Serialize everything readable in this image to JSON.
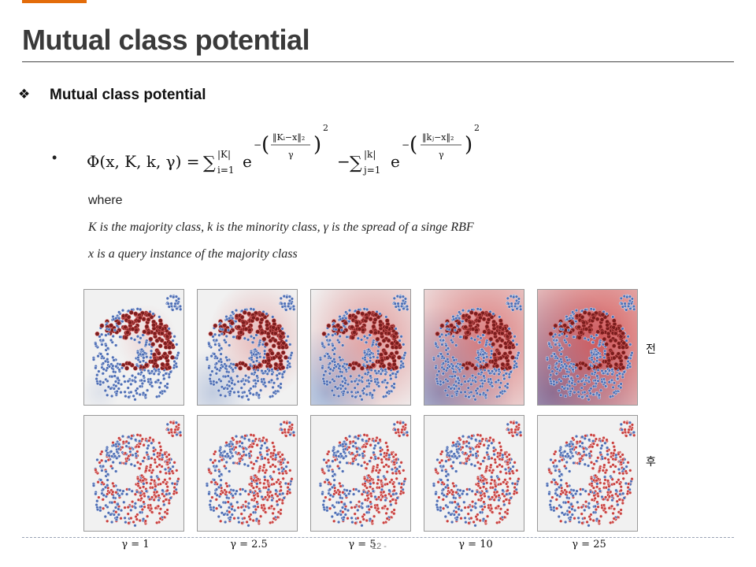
{
  "slide": {
    "title": "Mutual class potential",
    "accent_color": "#e36c0a",
    "section_heading": "Mutual class potential",
    "bullet_glyph": "❖",
    "equation_bullet": "•",
    "where": "where",
    "definition_line_1": "K is the majority class,  k is the minority class,  γ is the spread of  a singe RBF",
    "definition_line_2": "x is a query instance of the majority class",
    "page_number": "12 -"
  },
  "formula": {
    "lhs": "Φ(x, K, k, γ) = ",
    "sum1": "∑",
    "sum1_upper": "|K|",
    "sum1_lower": "i=1",
    "base1": "e",
    "exp1_numerator": "‖Kᵢ−x‖₂",
    "exp1_denominator": "γ",
    "minus": "−",
    "sum2": "∑",
    "sum2_upper": "|k|",
    "sum2_lower": "j=1",
    "base2": "e",
    "exp2_numerator": "‖kⱼ−x‖₂",
    "exp2_denominator": "γ",
    "power": "2"
  },
  "figure": {
    "row_labels": {
      "before": "전",
      "after": "후"
    },
    "gamma_labels": [
      "γ = 1",
      "γ = 2.5",
      "γ = 5",
      "γ = 10",
      "γ = 25"
    ],
    "colors": {
      "majority": "#4f6fb5",
      "minority": "#c9413f",
      "overlap_dark": "#7a1d1d",
      "field_red": "#d04040",
      "field_blue": "#3c64b0"
    }
  }
}
